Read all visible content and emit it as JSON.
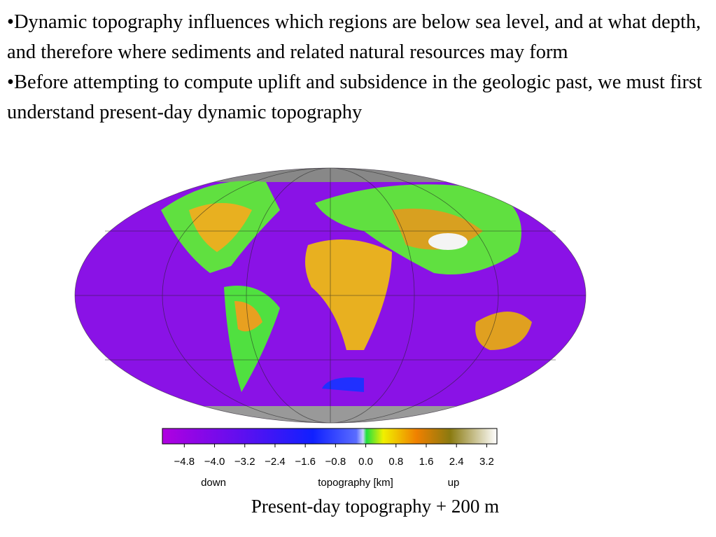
{
  "bullets": [
    "•Dynamic topography influences which regions are below sea level, and at what depth, and therefore where sediments and related natural resources may form",
    "•Before attempting to compute uplift and subsidence in the geologic past, we must first understand present-day dynamic topography"
  ],
  "colorbar": {
    "clim": [
      -5.38,
      3.47
    ],
    "ticks": [
      {
        "value": -4.8,
        "label": "−4.8"
      },
      {
        "value": -4.0,
        "label": "−4.0"
      },
      {
        "value": -3.2,
        "label": "−3.2"
      },
      {
        "value": -2.4,
        "label": "−2.4"
      },
      {
        "value": -1.6,
        "label": "−1.6"
      },
      {
        "value": -0.8,
        "label": "−0.8"
      },
      {
        "value": 0.0,
        "label": "0.0"
      },
      {
        "value": 0.8,
        "label": "0.8"
      },
      {
        "value": 1.6,
        "label": "1.6"
      },
      {
        "value": 2.4,
        "label": "2.4"
      },
      {
        "value": 3.2,
        "label": "3.2"
      }
    ],
    "left_label": "down",
    "label": "topography [km]",
    "right_label": "up"
  },
  "caption": "Present-day topography + 200 m"
}
